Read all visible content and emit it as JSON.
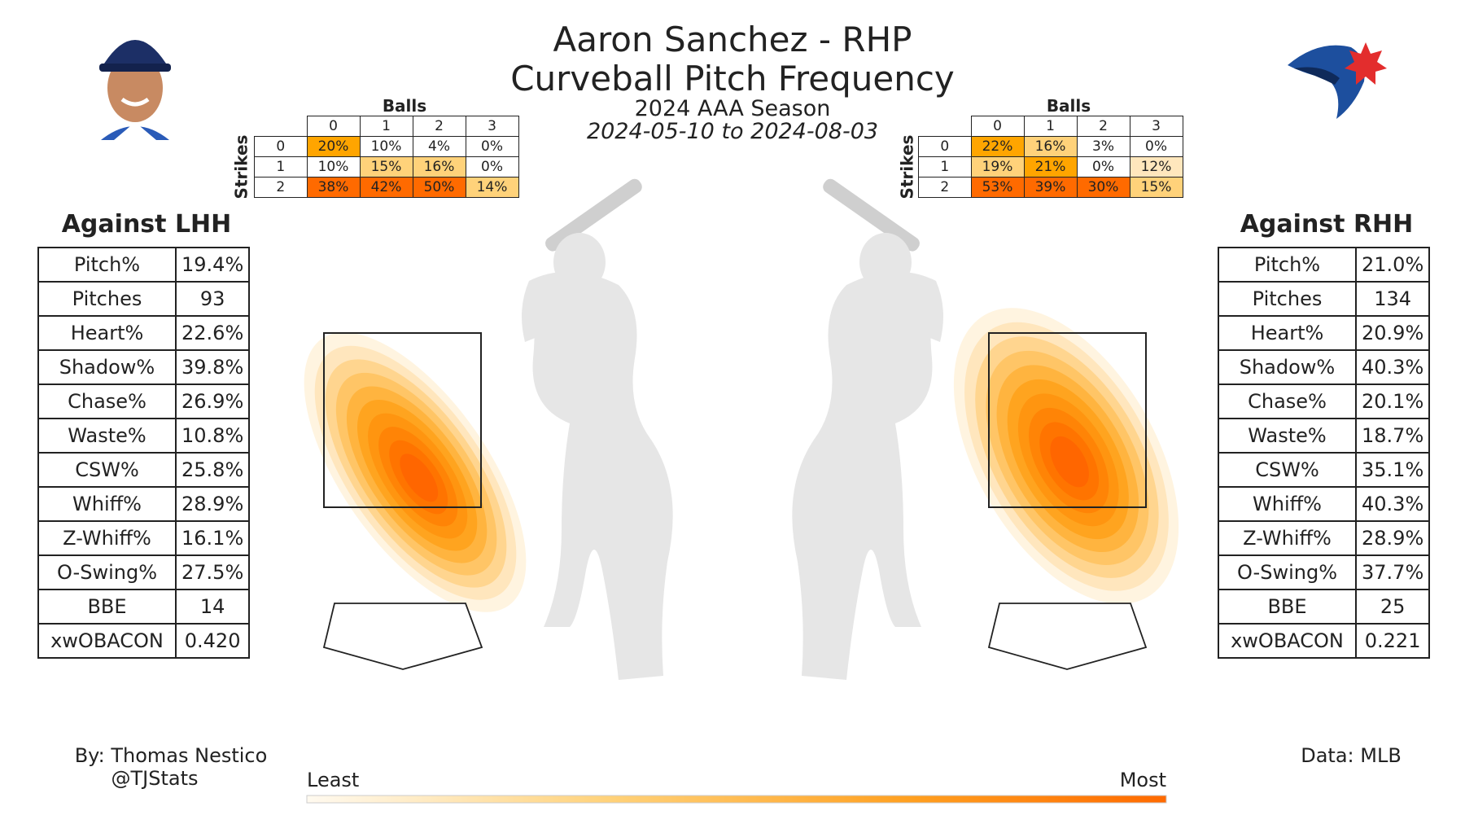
{
  "header": {
    "title_line1": "Aaron Sanchez - RHP",
    "title_line2": "Curveball Pitch Frequency",
    "season": "2024 AAA Season",
    "date_range": "2024-05-10 to 2024-08-03"
  },
  "credits": {
    "author": "By: Thomas Nestico",
    "handle": "@TJStats",
    "source": "Data: MLB"
  },
  "scale": {
    "least": "Least",
    "most": "Most",
    "color_low": "#fff3dc",
    "color_high": "#ff5a00"
  },
  "colors": {
    "heat_mid": "#ffa500",
    "heat_high": "#ff6a00",
    "batter": "#e6e6e6",
    "bat": "#cfcfcf"
  },
  "chart_data": {
    "type": "heatmap",
    "panels": [
      {
        "side_label": "Against LHH",
        "stats": [
          {
            "label": "Pitch%",
            "value": "19.4%"
          },
          {
            "label": "Pitches",
            "value": "93"
          },
          {
            "label": "Heart%",
            "value": "22.6%"
          },
          {
            "label": "Shadow%",
            "value": "39.8%"
          },
          {
            "label": "Chase%",
            "value": "26.9%"
          },
          {
            "label": "Waste%",
            "value": "10.8%"
          },
          {
            "label": "CSW%",
            "value": "25.8%"
          },
          {
            "label": "Whiff%",
            "value": "28.9%"
          },
          {
            "label": "Z-Whiff%",
            "value": "16.1%"
          },
          {
            "label": "O-Swing%",
            "value": "27.5%"
          },
          {
            "label": "BBE",
            "value": "14"
          },
          {
            "label": "xwOBACON",
            "value": "0.420"
          }
        ],
        "count_table": {
          "balls_label": "Balls",
          "strikes_label": "Strikes",
          "balls": [
            "0",
            "1",
            "2",
            "3"
          ],
          "strikes": [
            "0",
            "1",
            "2"
          ],
          "values": [
            [
              "20%",
              "10%",
              "4%",
              "0%"
            ],
            [
              "10%",
              "15%",
              "16%",
              "0%"
            ],
            [
              "38%",
              "42%",
              "50%",
              "14%"
            ]
          ]
        }
      },
      {
        "side_label": "Against RHH",
        "stats": [
          {
            "label": "Pitch%",
            "value": "21.0%"
          },
          {
            "label": "Pitches",
            "value": "134"
          },
          {
            "label": "Heart%",
            "value": "20.9%"
          },
          {
            "label": "Shadow%",
            "value": "40.3%"
          },
          {
            "label": "Chase%",
            "value": "20.1%"
          },
          {
            "label": "Waste%",
            "value": "18.7%"
          },
          {
            "label": "CSW%",
            "value": "35.1%"
          },
          {
            "label": "Whiff%",
            "value": "40.3%"
          },
          {
            "label": "Z-Whiff%",
            "value": "28.9%"
          },
          {
            "label": "O-Swing%",
            "value": "37.7%"
          },
          {
            "label": "BBE",
            "value": "25"
          },
          {
            "label": "xwOBACON",
            "value": "0.221"
          }
        ],
        "count_table": {
          "balls_label": "Balls",
          "strikes_label": "Strikes",
          "balls": [
            "0",
            "1",
            "2",
            "3"
          ],
          "strikes": [
            "0",
            "1",
            "2"
          ],
          "values": [
            [
              "22%",
              "16%",
              "3%",
              "0%"
            ],
            [
              "19%",
              "21%",
              "0%",
              "12%"
            ],
            [
              "53%",
              "39%",
              "30%",
              "15%"
            ]
          ]
        }
      }
    ]
  }
}
